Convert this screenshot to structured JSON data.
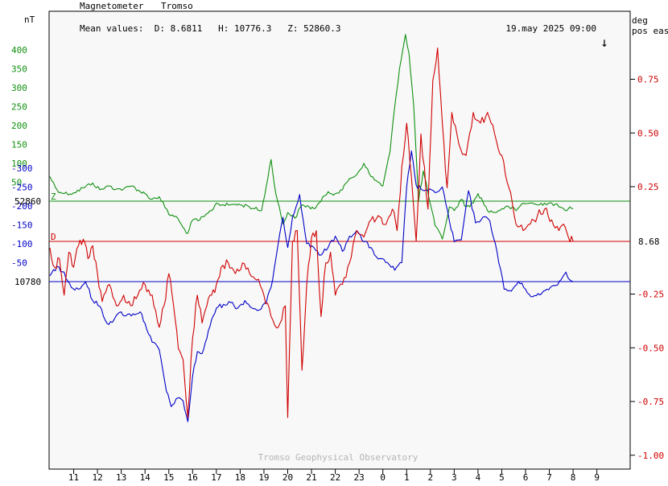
{
  "header": {
    "title": "Magnetometer",
    "station": "Tromso",
    "mean_values": "Mean values:  D: 8.6811   H: 10776.3   Z: 52860.3",
    "timestamp": "19.may 2025 09:00",
    "arrow": "↓"
  },
  "units": {
    "left": "nT",
    "right_line1": "deg",
    "right_line2": "pos east"
  },
  "footer": "Tromso Geophysical Observatory",
  "baselines": {
    "Z": {
      "label": "52860",
      "letter": "Z"
    },
    "D": {
      "label": "8.68",
      "letter": "D"
    },
    "H": {
      "label": "10780"
    }
  },
  "colors": {
    "background": "#f8f8f8",
    "Z": "#109010",
    "H": "#0000c8",
    "D": "#d00000",
    "frame": "#000000",
    "footer": "#b4b4b4"
  },
  "chart_data": {
    "type": "line",
    "x_unit": "hour of day (UTC), 10:00 on 18 May to 09:00 on 19 May 2025",
    "x_ticks": [
      "11",
      "12",
      "13",
      "14",
      "15",
      "16",
      "17",
      "18",
      "19",
      "20",
      "21",
      "22",
      "23",
      "0",
      "1",
      "2",
      "3",
      "4",
      "5",
      "6",
      "7",
      "8",
      "9"
    ],
    "left_axis": {
      "unit": "nT",
      "z_ticks": [
        "50",
        "100",
        "150",
        "200",
        "250",
        "300",
        "350",
        "400"
      ],
      "h_ticks": [
        "-50",
        "-100",
        "-150",
        "-200",
        "-250",
        "-300"
      ]
    },
    "right_axis": {
      "unit": "deg pos east",
      "ticks": [
        "0.75",
        "0.50",
        "0.25",
        "-0.25",
        "-0.50",
        "-0.75",
        "-1.00"
      ]
    },
    "series": [
      {
        "name": "Z",
        "baseline": 52860,
        "axis": "left nT, offset from baseline",
        "points": [
          [
            10.0,
            65
          ],
          [
            10.3,
            30
          ],
          [
            10.6,
            20
          ],
          [
            11.0,
            22
          ],
          [
            11.4,
            35
          ],
          [
            11.8,
            48
          ],
          [
            12.1,
            30
          ],
          [
            12.5,
            40
          ],
          [
            12.8,
            32
          ],
          [
            13.1,
            32
          ],
          [
            13.5,
            40
          ],
          [
            13.8,
            25
          ],
          [
            14.0,
            20
          ],
          [
            14.3,
            5
          ],
          [
            14.6,
            12
          ],
          [
            15.0,
            -35
          ],
          [
            15.3,
            -40
          ],
          [
            15.6,
            -70
          ],
          [
            15.8,
            -85
          ],
          [
            16.0,
            -50
          ],
          [
            16.3,
            -50
          ],
          [
            16.5,
            -40
          ],
          [
            16.8,
            -25
          ],
          [
            17.0,
            -5
          ],
          [
            17.3,
            -10
          ],
          [
            17.5,
            -10
          ],
          [
            17.8,
            -8
          ],
          [
            18.0,
            -10
          ],
          [
            18.3,
            -12
          ],
          [
            18.6,
            -20
          ],
          [
            18.9,
            -25
          ],
          [
            19.1,
            40
          ],
          [
            19.3,
            110
          ],
          [
            19.5,
            20
          ],
          [
            19.8,
            -60
          ],
          [
            20.0,
            -30
          ],
          [
            20.3,
            -45
          ],
          [
            20.6,
            -10
          ],
          [
            20.9,
            -15
          ],
          [
            21.1,
            -20
          ],
          [
            21.4,
            0
          ],
          [
            21.7,
            25
          ],
          [
            22.0,
            20
          ],
          [
            22.3,
            30
          ],
          [
            22.6,
            60
          ],
          [
            22.9,
            70
          ],
          [
            23.2,
            100
          ],
          [
            23.5,
            65
          ],
          [
            23.8,
            50
          ],
          [
            24.0,
            40
          ],
          [
            24.3,
            130
          ],
          [
            24.5,
            250
          ],
          [
            24.7,
            350
          ],
          [
            24.95,
            440
          ],
          [
            25.1,
            390
          ],
          [
            25.3,
            250
          ],
          [
            25.5,
            0
          ],
          [
            25.7,
            80
          ],
          [
            25.9,
            20
          ],
          [
            26.2,
            -65
          ],
          [
            26.5,
            -100
          ],
          [
            26.8,
            -15
          ],
          [
            27.0,
            -25
          ],
          [
            27.3,
            5
          ],
          [
            27.5,
            -15
          ],
          [
            27.8,
            -5
          ],
          [
            28.0,
            20
          ],
          [
            28.2,
            0
          ],
          [
            28.4,
            -25
          ],
          [
            28.7,
            -30
          ],
          [
            29.0,
            -20
          ],
          [
            29.3,
            -15
          ],
          [
            29.6,
            -25
          ],
          [
            29.9,
            -5
          ],
          [
            30.2,
            -5
          ],
          [
            30.5,
            -10
          ],
          [
            30.8,
            -5
          ],
          [
            31.1,
            -5
          ],
          [
            31.4,
            -15
          ],
          [
            31.6,
            -20
          ],
          [
            31.8,
            -20
          ],
          [
            32.0,
            -20
          ]
        ]
      },
      {
        "name": "H",
        "baseline": 10780,
        "axis": "left nT, offset from baseline",
        "points": [
          [
            10.0,
            -15
          ],
          [
            10.3,
            -40
          ],
          [
            10.6,
            -25
          ],
          [
            10.9,
            15
          ],
          [
            11.2,
            20
          ],
          [
            11.5,
            0
          ],
          [
            11.8,
            50
          ],
          [
            12.1,
            65
          ],
          [
            12.4,
            110
          ],
          [
            12.7,
            100
          ],
          [
            13.0,
            80
          ],
          [
            13.2,
            90
          ],
          [
            13.5,
            85
          ],
          [
            13.8,
            80
          ],
          [
            14.0,
            110
          ],
          [
            14.3,
            160
          ],
          [
            14.6,
            180
          ],
          [
            14.9,
            290
          ],
          [
            15.1,
            330
          ],
          [
            15.3,
            310
          ],
          [
            15.6,
            315
          ],
          [
            15.8,
            370
          ],
          [
            16.0,
            250
          ],
          [
            16.2,
            185
          ],
          [
            16.4,
            190
          ],
          [
            16.6,
            150
          ],
          [
            16.8,
            100
          ],
          [
            17.0,
            70
          ],
          [
            17.3,
            60
          ],
          [
            17.6,
            55
          ],
          [
            17.9,
            70
          ],
          [
            18.2,
            50
          ],
          [
            18.5,
            70
          ],
          [
            18.8,
            75
          ],
          [
            19.1,
            55
          ],
          [
            19.3,
            15
          ],
          [
            19.5,
            -60
          ],
          [
            19.8,
            -170
          ],
          [
            20.0,
            -90
          ],
          [
            20.2,
            -170
          ],
          [
            20.5,
            -230
          ],
          [
            20.8,
            -100
          ],
          [
            21.1,
            -90
          ],
          [
            21.4,
            -70
          ],
          [
            21.7,
            -90
          ],
          [
            22.0,
            -120
          ],
          [
            22.3,
            -80
          ],
          [
            22.6,
            -120
          ],
          [
            22.9,
            -135
          ],
          [
            23.2,
            -105
          ],
          [
            23.5,
            -90
          ],
          [
            23.8,
            -60
          ],
          [
            24.2,
            -50
          ],
          [
            24.5,
            -30
          ],
          [
            24.8,
            -50
          ],
          [
            25.0,
            -250
          ],
          [
            25.2,
            -345
          ],
          [
            25.4,
            -255
          ],
          [
            25.6,
            -245
          ],
          [
            25.9,
            -240
          ],
          [
            26.2,
            -235
          ],
          [
            26.5,
            -250
          ],
          [
            26.8,
            -160
          ],
          [
            27.0,
            -105
          ],
          [
            27.3,
            -110
          ],
          [
            27.6,
            -240
          ],
          [
            27.9,
            -155
          ],
          [
            28.2,
            -170
          ],
          [
            28.5,
            -160
          ],
          [
            28.8,
            -80
          ],
          [
            29.1,
            20
          ],
          [
            29.4,
            25
          ],
          [
            29.7,
            0
          ],
          [
            30.0,
            20
          ],
          [
            30.3,
            40
          ],
          [
            30.6,
            35
          ],
          [
            30.9,
            20
          ],
          [
            31.2,
            10
          ],
          [
            31.5,
            -5
          ],
          [
            31.7,
            -25
          ],
          [
            31.85,
            -5
          ],
          [
            32.0,
            0
          ]
        ]
      },
      {
        "name": "D",
        "baseline": 8.68,
        "axis": "right deg, offset from baseline",
        "points": [
          [
            10.0,
            -0.03
          ],
          [
            10.2,
            -0.12
          ],
          [
            10.4,
            -0.08
          ],
          [
            10.6,
            -0.25
          ],
          [
            10.8,
            -0.05
          ],
          [
            11.0,
            -0.12
          ],
          [
            11.2,
            -0.02
          ],
          [
            11.4,
            0.01
          ],
          [
            11.6,
            -0.08
          ],
          [
            11.8,
            -0.02
          ],
          [
            12.0,
            -0.15
          ],
          [
            12.2,
            -0.28
          ],
          [
            12.5,
            -0.2
          ],
          [
            12.8,
            -0.3
          ],
          [
            13.1,
            -0.25
          ],
          [
            13.4,
            -0.3
          ],
          [
            13.7,
            -0.25
          ],
          [
            14.0,
            -0.2
          ],
          [
            14.3,
            -0.25
          ],
          [
            14.6,
            -0.4
          ],
          [
            14.8,
            -0.3
          ],
          [
            15.0,
            -0.15
          ],
          [
            15.2,
            -0.3
          ],
          [
            15.4,
            -0.5
          ],
          [
            15.6,
            -0.55
          ],
          [
            15.8,
            -0.82
          ],
          [
            16.0,
            -0.45
          ],
          [
            16.2,
            -0.25
          ],
          [
            16.4,
            -0.38
          ],
          [
            16.6,
            -0.3
          ],
          [
            16.8,
            -0.25
          ],
          [
            17.0,
            -0.2
          ],
          [
            17.2,
            -0.12
          ],
          [
            17.5,
            -0.1
          ],
          [
            17.8,
            -0.15
          ],
          [
            18.1,
            -0.1
          ],
          [
            18.4,
            -0.15
          ],
          [
            18.7,
            -0.18
          ],
          [
            19.0,
            -0.25
          ],
          [
            19.3,
            -0.35
          ],
          [
            19.6,
            -0.4
          ],
          [
            19.9,
            -0.3
          ],
          [
            20.0,
            -0.82
          ],
          [
            20.2,
            0.0
          ],
          [
            20.4,
            0.05
          ],
          [
            20.6,
            -0.6
          ],
          [
            20.8,
            -0.2
          ],
          [
            21.0,
            0.02
          ],
          [
            21.2,
            0.05
          ],
          [
            21.4,
            -0.35
          ],
          [
            21.6,
            -0.1
          ],
          [
            21.8,
            -0.05
          ],
          [
            22.0,
            -0.25
          ],
          [
            22.3,
            -0.2
          ],
          [
            22.6,
            -0.1
          ],
          [
            22.9,
            0.05
          ],
          [
            23.2,
            0.02
          ],
          [
            23.5,
            0.1
          ],
          [
            23.8,
            0.12
          ],
          [
            24.0,
            0.08
          ],
          [
            24.2,
            0.1
          ],
          [
            24.4,
            0.15
          ],
          [
            24.6,
            0.05
          ],
          [
            24.8,
            0.35
          ],
          [
            25.0,
            0.55
          ],
          [
            25.2,
            0.3
          ],
          [
            25.4,
            0.0
          ],
          [
            25.6,
            0.5
          ],
          [
            25.9,
            0.15
          ],
          [
            26.1,
            0.75
          ],
          [
            26.3,
            0.9
          ],
          [
            26.5,
            0.55
          ],
          [
            26.7,
            0.25
          ],
          [
            26.9,
            0.6
          ],
          [
            27.2,
            0.45
          ],
          [
            27.5,
            0.4
          ],
          [
            27.8,
            0.6
          ],
          [
            28.1,
            0.55
          ],
          [
            28.4,
            0.6
          ],
          [
            28.7,
            0.5
          ],
          [
            29.0,
            0.4
          ],
          [
            29.3,
            0.25
          ],
          [
            29.6,
            0.08
          ],
          [
            29.9,
            0.05
          ],
          [
            30.2,
            0.08
          ],
          [
            30.5,
            0.12
          ],
          [
            30.8,
            0.15
          ],
          [
            31.1,
            0.1
          ],
          [
            31.4,
            0.05
          ],
          [
            31.6,
            0.08
          ],
          [
            31.8,
            0.02
          ],
          [
            32.0,
            0.0
          ]
        ]
      }
    ]
  }
}
